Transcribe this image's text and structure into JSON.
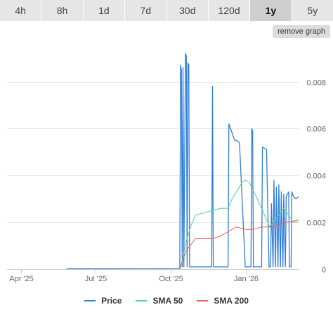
{
  "tabs": [
    {
      "label": "4h",
      "active": false
    },
    {
      "label": "8h",
      "active": false
    },
    {
      "label": "1d",
      "active": false
    },
    {
      "label": "7d",
      "active": false
    },
    {
      "label": "30d",
      "active": false
    },
    {
      "label": "120d",
      "active": false
    },
    {
      "label": "1y",
      "active": true
    },
    {
      "label": "5y",
      "active": false
    }
  ],
  "remove_graph_label": "remove graph",
  "chart_data": {
    "type": "line",
    "x_axis": {
      "type": "date",
      "range": [
        "2025-03-15",
        "2026-03-07"
      ],
      "ticks": [
        "Apr '25",
        "Jul '25",
        "Oct '25",
        "Jan '26"
      ],
      "tick_dates": [
        "2025-04-01",
        "2025-07-01",
        "2025-10-01",
        "2026-01-01"
      ]
    },
    "y_axis": {
      "range": [
        0,
        0.0096
      ],
      "ticks": [
        "0",
        "0.002",
        "0.004",
        "0.006",
        "0.008"
      ],
      "tick_values": [
        0,
        0.002,
        0.004,
        0.006,
        0.008
      ],
      "position": "right"
    },
    "grid": true,
    "legend_position": "bottom",
    "series": [
      {
        "name": "Price",
        "color": "#2f7ed8",
        "points": [
          [
            "2025-05-27",
            2e-05
          ],
          [
            "2025-07-15",
            2e-05
          ],
          [
            "2025-09-01",
            3e-05
          ],
          [
            "2025-09-30",
            3e-05
          ],
          [
            "2025-10-12",
            4e-05
          ],
          [
            "2025-10-13",
            0.0087
          ],
          [
            "2025-10-14",
            0.0085
          ],
          [
            "2025-10-15",
            0.0001
          ],
          [
            "2025-10-16",
            0.0086
          ],
          [
            "2025-10-17",
            0.0001
          ],
          [
            "2025-10-19",
            0.0092
          ],
          [
            "2025-10-20",
            0.0091
          ],
          [
            "2025-10-21",
            0.0001
          ],
          [
            "2025-10-22",
            0.0088
          ],
          [
            "2025-10-23",
            0.0087
          ],
          [
            "2025-10-24",
            0.0001
          ],
          [
            "2025-11-20",
            0.0001
          ],
          [
            "2025-11-21",
            0.0078
          ],
          [
            "2025-11-22",
            0.0001
          ],
          [
            "2025-12-10",
            0.0001
          ],
          [
            "2025-12-11",
            0.0062
          ],
          [
            "2025-12-12",
            0.0061
          ],
          [
            "2025-12-18",
            0.0055
          ],
          [
            "2025-12-20",
            0.0055
          ],
          [
            "2025-12-24",
            0.0054
          ],
          [
            "2025-12-31",
            0.0001
          ],
          [
            "2026-01-07",
            0.0001
          ],
          [
            "2026-01-08",
            0.006
          ],
          [
            "2026-01-09",
            0.0059
          ],
          [
            "2026-01-10",
            0.0001
          ],
          [
            "2026-01-20",
            0.0001
          ],
          [
            "2026-01-21",
            0.0052
          ],
          [
            "2026-01-22",
            0.0052
          ],
          [
            "2026-01-26",
            0.0051
          ],
          [
            "2026-01-29",
            0.0001
          ],
          [
            "2026-01-31",
            0.0001
          ],
          [
            "2026-02-01",
            0.0028
          ],
          [
            "2026-02-03",
            0.0001
          ],
          [
            "2026-02-04",
            0.0038
          ],
          [
            "2026-02-06",
            0.0001
          ],
          [
            "2026-02-07",
            0.0035
          ],
          [
            "2026-02-09",
            0.0001
          ],
          [
            "2026-02-10",
            0.0036
          ],
          [
            "2026-02-12",
            0.0001
          ],
          [
            "2026-02-13",
            0.0033
          ],
          [
            "2026-02-15",
            0.0001
          ],
          [
            "2026-02-16",
            0.0032
          ],
          [
            "2026-02-18",
            0.0001
          ],
          [
            "2026-02-19",
            0.0031
          ],
          [
            "2026-02-22",
            0.0033
          ],
          [
            "2026-02-23",
            0.0001
          ],
          [
            "2026-02-25",
            0.0001
          ],
          [
            "2026-02-26",
            0.0033
          ],
          [
            "2026-02-28",
            0.0031
          ],
          [
            "2026-03-03",
            0.003
          ],
          [
            "2026-03-06",
            0.0031
          ]
        ]
      },
      {
        "name": "SMA 50",
        "color": "#4dd68c",
        "points": [
          [
            "2025-10-12",
            0.0
          ],
          [
            "2025-10-16",
            0.0005
          ],
          [
            "2025-10-20",
            0.0012
          ],
          [
            "2025-10-25",
            0.0018
          ],
          [
            "2025-10-31",
            0.0023
          ],
          [
            "2025-11-10",
            0.0024
          ],
          [
            "2025-11-20",
            0.0025
          ],
          [
            "2025-12-01",
            0.0026
          ],
          [
            "2025-12-10",
            0.0026
          ],
          [
            "2025-12-15",
            0.003
          ],
          [
            "2025-12-22",
            0.0034
          ],
          [
            "2025-12-27",
            0.0037
          ],
          [
            "2025-12-31",
            0.0038
          ],
          [
            "2026-01-05",
            0.0037
          ],
          [
            "2026-01-12",
            0.0032
          ],
          [
            "2026-01-20",
            0.0026
          ],
          [
            "2026-01-26",
            0.0021
          ],
          [
            "2026-01-30",
            0.0018
          ],
          [
            "2026-02-05",
            0.0021
          ],
          [
            "2026-02-12",
            0.0024
          ],
          [
            "2026-02-16",
            0.0026
          ],
          [
            "2026-02-22",
            0.0023
          ],
          [
            "2026-02-28",
            0.002
          ],
          [
            "2026-03-06",
            0.002
          ]
        ]
      },
      {
        "name": "SMA 200",
        "color": "#f05a5a",
        "points": [
          [
            "2025-10-12",
            0.0
          ],
          [
            "2025-10-20",
            0.0008
          ],
          [
            "2025-10-31",
            0.0013
          ],
          [
            "2025-11-20",
            0.0013
          ],
          [
            "2025-11-30",
            0.0014
          ],
          [
            "2025-12-10",
            0.0016
          ],
          [
            "2025-12-20",
            0.0018
          ],
          [
            "2026-01-01",
            0.0017
          ],
          [
            "2026-01-10",
            0.0017
          ],
          [
            "2026-01-20",
            0.0018
          ],
          [
            "2026-02-01",
            0.0018
          ],
          [
            "2026-02-10",
            0.0019
          ],
          [
            "2026-02-20",
            0.002
          ],
          [
            "2026-03-06",
            0.0021
          ]
        ]
      }
    ]
  }
}
